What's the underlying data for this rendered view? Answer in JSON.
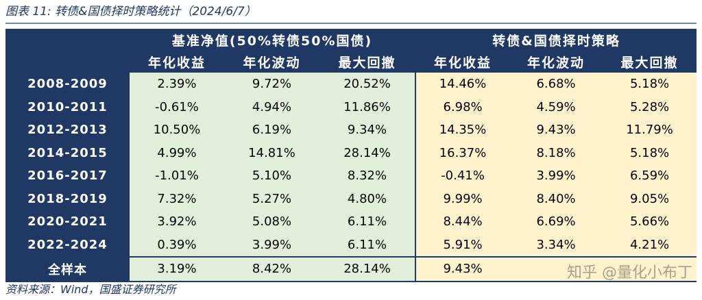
{
  "title": "图表 11: 转债&国债择时策略统计（2024/6/7）",
  "header": {
    "group1": "基准净值(50%转债50%国债)",
    "group2": "转债&国债择时策略",
    "cols": [
      "年化收益",
      "年化波动",
      "最大回撤",
      "年化收益",
      "年化波动",
      "最大回撤"
    ]
  },
  "rows": [
    {
      "label": "2008-2009",
      "values": [
        "2.39%",
        "9.72%",
        "20.52%",
        "14.46%",
        "6.68%",
        "5.18%"
      ]
    },
    {
      "label": "2010-2011",
      "values": [
        "-0.61%",
        "4.94%",
        "11.86%",
        "6.98%",
        "4.59%",
        "5.28%"
      ]
    },
    {
      "label": "2012-2013",
      "values": [
        "10.50%",
        "6.19%",
        "9.34%",
        "14.35%",
        "9.43%",
        "11.79%"
      ]
    },
    {
      "label": "2014-2015",
      "values": [
        "4.99%",
        "14.81%",
        "28.14%",
        "16.37%",
        "8.18%",
        "5.18%"
      ]
    },
    {
      "label": "2016-2017",
      "values": [
        "-1.01%",
        "5.10%",
        "8.32%",
        "-0.41%",
        "3.99%",
        "6.59%"
      ]
    },
    {
      "label": "2018-2019",
      "values": [
        "7.32%",
        "5.27%",
        "4.80%",
        "9.99%",
        "8.40%",
        "9.05%"
      ]
    },
    {
      "label": "2020-2021",
      "values": [
        "3.92%",
        "5.08%",
        "6.11%",
        "8.44%",
        "6.69%",
        "5.66%"
      ]
    },
    {
      "label": "2022-2024",
      "values": [
        "0.39%",
        "3.99%",
        "6.11%",
        "5.91%",
        "3.34%",
        "4.21%"
      ]
    },
    {
      "label": "全样本",
      "values": [
        "3.19%",
        "8.42%",
        "28.14%",
        "9.43%",
        "",
        ""
      ]
    }
  ],
  "source": "资料来源：Wind，国盛证券研究所",
  "watermark": "知乎 @量化小布丁"
}
